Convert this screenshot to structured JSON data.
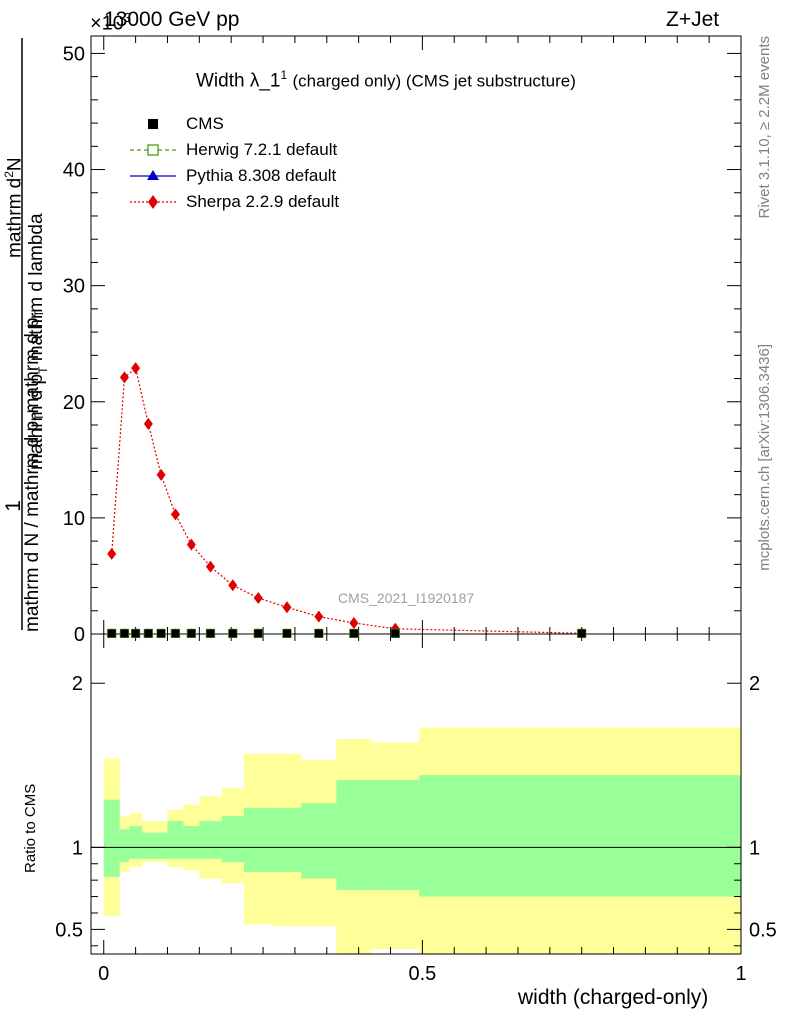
{
  "header": {
    "energy": "13000 GeV pp",
    "process": "Z+Jet",
    "exponent": "×10",
    "exponent_power": "3"
  },
  "plot_title": {
    "main": "Width λ_1",
    "sup": "1",
    "rest": "(charged only) (CMS jet substructure)"
  },
  "side_labels": {
    "rivet": "Rivet 3.1.10, ≥ 2.2M events",
    "mcplots": "mcplots.cern.ch [arXiv:1306.3436]"
  },
  "watermark": "CMS_2021_I1920187",
  "legend": [
    {
      "label": "CMS",
      "color": "#000000",
      "marker": "square-filled",
      "line": "none"
    },
    {
      "label": "Herwig 7.2.1 default",
      "color": "#4d9a1a",
      "marker": "square-open",
      "line": "dashed"
    },
    {
      "label": "Pythia 8.308 default",
      "color": "#0000cc",
      "marker": "triangle",
      "line": "solid"
    },
    {
      "label": "Sherpa 2.2.9 default",
      "color": "#e00000",
      "marker": "diamond",
      "line": "dotted"
    }
  ],
  "axes": {
    "ylabel_num": "1",
    "ylabel_den1": "mathrm d N / mathrm d p",
    "ylabel_den1_sub": "T",
    "ylabel_den2": "mathrm d",
    "ylabel_den2_sup": "2",
    "ylabel_den2b": "N",
    "ylabel_den3": "mathrm d p",
    "ylabel_den3_sub": "T",
    "ylabel_den3b": "mathrm d lambda",
    "ratio_ylabel": "Ratio to CMS",
    "xlabel": "width (charged-only)"
  },
  "chart_data": [
    {
      "type": "line",
      "panel": "main",
      "xlim": [
        -0.02,
        1.0
      ],
      "ylim": [
        0,
        51.5
      ],
      "y_multiplier": 1000,
      "yticks": [
        0,
        10,
        20,
        30,
        40,
        50
      ],
      "x": [
        0.0125,
        0.0325,
        0.05,
        0.07,
        0.09,
        0.1125,
        0.1375,
        0.1675,
        0.2025,
        0.2425,
        0.2875,
        0.3375,
        0.3925,
        0.4575,
        0.75
      ],
      "series": [
        {
          "name": "CMS",
          "values": [
            0.05,
            0.05,
            0.05,
            0.05,
            0.05,
            0.05,
            0.05,
            0.05,
            0.05,
            0.05,
            0.05,
            0.05,
            0.05,
            0.05,
            0.05
          ]
        },
        {
          "name": "Herwig 7.2.1 default",
          "values": [
            0.05,
            0.05,
            0.05,
            0.05,
            0.05,
            0.05,
            0.05,
            0.05,
            0.05,
            0.05,
            0.05,
            0.05,
            0.05,
            0.05,
            0.05
          ]
        },
        {
          "name": "Pythia 8.308 default",
          "values": [
            0.05,
            0.05,
            0.05,
            0.05,
            0.05,
            0.05,
            0.05,
            0.05,
            0.05,
            0.05,
            0.05,
            0.05,
            0.05,
            0.05,
            0.05
          ]
        },
        {
          "name": "Sherpa 2.2.9 default",
          "values": [
            6.9,
            22.1,
            22.9,
            18.1,
            13.7,
            10.3,
            7.7,
            5.8,
            4.2,
            3.1,
            2.3,
            1.5,
            0.95,
            0.45,
            0.06
          ]
        }
      ]
    },
    {
      "type": "area",
      "panel": "ratio",
      "xlim": [
        -0.02,
        1.0
      ],
      "ylim": [
        0.35,
        2.3
      ],
      "yticks": [
        0.5,
        1,
        2
      ],
      "xticks": [
        0,
        0.5,
        1
      ],
      "reference_line": 1,
      "bins": [
        {
          "x0": 0.0,
          "x1": 0.025,
          "stat_lo": 0.82,
          "stat_hi": 1.29,
          "tot_lo": 0.58,
          "tot_hi": 1.54
        },
        {
          "x0": 0.025,
          "x1": 0.04,
          "stat_lo": 0.91,
          "stat_hi": 1.11,
          "tot_lo": 0.85,
          "tot_hi": 1.19
        },
        {
          "x0": 0.04,
          "x1": 0.06,
          "stat_lo": 0.93,
          "stat_hi": 1.13,
          "tot_lo": 0.88,
          "tot_hi": 1.21
        },
        {
          "x0": 0.06,
          "x1": 0.08,
          "stat_lo": 0.93,
          "stat_hi": 1.09,
          "tot_lo": 0.91,
          "tot_hi": 1.16
        },
        {
          "x0": 0.08,
          "x1": 0.1,
          "stat_lo": 0.93,
          "stat_hi": 1.09,
          "tot_lo": 0.91,
          "tot_hi": 1.16
        },
        {
          "x0": 0.1,
          "x1": 0.125,
          "stat_lo": 0.93,
          "stat_hi": 1.16,
          "tot_lo": 0.88,
          "tot_hi": 1.23
        },
        {
          "x0": 0.125,
          "x1": 0.15,
          "stat_lo": 0.93,
          "stat_hi": 1.13,
          "tot_lo": 0.86,
          "tot_hi": 1.26
        },
        {
          "x0": 0.15,
          "x1": 0.185,
          "stat_lo": 0.93,
          "stat_hi": 1.16,
          "tot_lo": 0.81,
          "tot_hi": 1.31
        },
        {
          "x0": 0.185,
          "x1": 0.22,
          "stat_lo": 0.91,
          "stat_hi": 1.19,
          "tot_lo": 0.78,
          "tot_hi": 1.36
        },
        {
          "x0": 0.22,
          "x1": 0.265,
          "stat_lo": 0.85,
          "stat_hi": 1.24,
          "tot_lo": 0.53,
          "tot_hi": 1.57
        },
        {
          "x0": 0.265,
          "x1": 0.31,
          "stat_lo": 0.85,
          "stat_hi": 1.24,
          "tot_lo": 0.52,
          "tot_hi": 1.57
        },
        {
          "x0": 0.31,
          "x1": 0.365,
          "stat_lo": 0.81,
          "stat_hi": 1.27,
          "tot_lo": 0.52,
          "tot_hi": 1.53
        },
        {
          "x0": 0.365,
          "x1": 0.42,
          "stat_lo": 0.74,
          "stat_hi": 1.41,
          "tot_lo": 0.35,
          "tot_hi": 1.66
        },
        {
          "x0": 0.42,
          "x1": 0.495,
          "stat_lo": 0.74,
          "stat_hi": 1.41,
          "tot_lo": 0.38,
          "tot_hi": 1.64
        },
        {
          "x0": 0.495,
          "x1": 1.0,
          "stat_lo": 0.7,
          "stat_hi": 1.44,
          "tot_lo": 0.35,
          "tot_hi": 1.73
        }
      ]
    }
  ]
}
